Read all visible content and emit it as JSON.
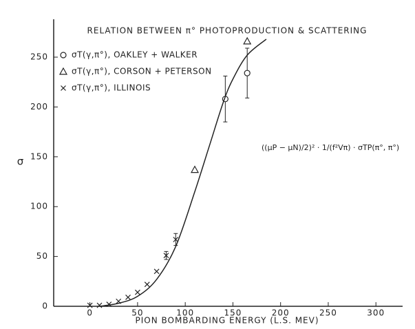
{
  "chart_data": {
    "type": "scatter",
    "title": "RELATION BETWEEN π° PHOTOPRODUCTION & SCATTERING",
    "x_label": "PION BOMBARDING ENERGY (L.S. MEV)",
    "y_label": "σ",
    "annotation": "((μP − μN)/2)² · 1/(f²Vπ) · σTP(π°, π°)",
    "xlim": [
      -38,
      328
    ],
    "ylim": [
      0,
      288
    ],
    "xticks": [
      0,
      50,
      100,
      150,
      200,
      250,
      300
    ],
    "yticks": [
      0,
      50,
      100,
      150,
      200,
      250
    ],
    "color": "#222222",
    "series": [
      {
        "name": "σT(γ,π°), OAKLEY + WALKER",
        "marker": "circle",
        "x": [
          142,
          165
        ],
        "values": [
          208,
          234
        ],
        "errors": [
          23,
          25
        ]
      },
      {
        "name": "σT(γ,π°), CORSON + PETERSON",
        "marker": "triangle",
        "x": [
          110,
          165
        ],
        "values": [
          137,
          266
        ]
      },
      {
        "name": "σT(γ,π°), ILLINOIS",
        "marker": "cross",
        "x": [
          0,
          10,
          20,
          30,
          40,
          50,
          60,
          70,
          80,
          90
        ],
        "values": [
          1,
          1,
          2,
          5,
          9,
          14,
          22,
          35,
          51,
          67
        ],
        "errors": [
          null,
          null,
          null,
          null,
          null,
          null,
          null,
          null,
          4,
          6
        ]
      },
      {
        "marker": "line",
        "x": [
          10,
          30,
          50,
          70,
          90,
          110,
          125,
          140,
          150,
          165,
          185
        ],
        "values": [
          0,
          3,
          10,
          27,
          60,
          115,
          160,
          205,
          228,
          252,
          268
        ]
      }
    ]
  }
}
